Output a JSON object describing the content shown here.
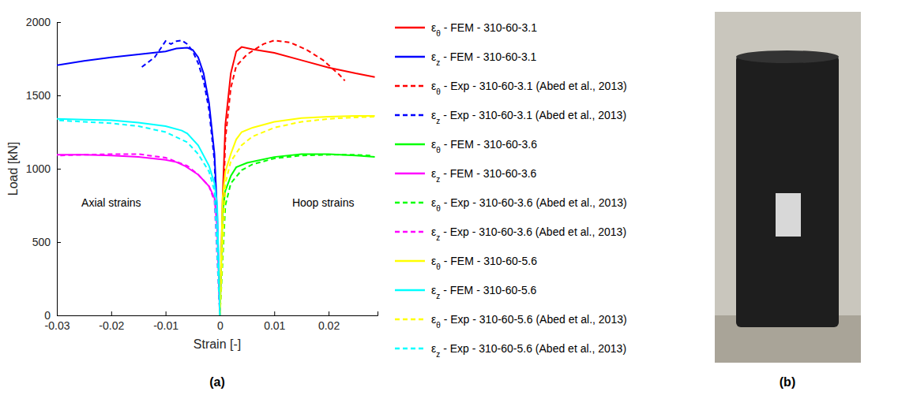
{
  "chart_data": {
    "type": "line",
    "x_label": "Strain [-]",
    "y_label": "Load [kN]",
    "xlim": [
      -0.03,
      0.029
    ],
    "ylim": [
      0,
      2000
    ],
    "xticks": [
      -0.03,
      -0.02,
      -0.01,
      0,
      0.01,
      0.02
    ],
    "yticks": [
      0,
      500,
      1000,
      1500,
      2000
    ],
    "grid": false,
    "legend": "right",
    "annotations": [
      {
        "text": "Axial strains",
        "x": -0.02,
        "y": 740
      },
      {
        "text": "Hoop strains",
        "x": 0.019,
        "y": 740
      }
    ],
    "series": [
      {
        "name": "εθ - FEM - 310-60-3.1",
        "color": "#ff0000",
        "line_style": "solid",
        "x": [
          0,
          0.0005,
          0.001,
          0.002,
          0.003,
          0.004,
          0.006,
          0.01,
          0.015,
          0.02,
          0.025,
          0.0285
        ],
        "values": [
          0,
          800,
          1300,
          1650,
          1800,
          1830,
          1815,
          1790,
          1740,
          1690,
          1650,
          1625
        ]
      },
      {
        "name": "εz - FEM - 310-60-3.1",
        "color": "#0000ff",
        "line_style": "solid",
        "x": [
          0,
          -0.0005,
          -0.001,
          -0.002,
          -0.003,
          -0.004,
          -0.005,
          -0.006,
          -0.008,
          -0.01,
          -0.015,
          -0.02,
          -0.025,
          -0.03
        ],
        "values": [
          0,
          700,
          1100,
          1450,
          1650,
          1760,
          1810,
          1825,
          1820,
          1800,
          1780,
          1760,
          1735,
          1705
        ]
      },
      {
        "name": "εθ - Exp - 310-60-3.1 (Abed et al., 2013)",
        "color": "#ff0000",
        "line_style": "dashed",
        "x": [
          0,
          0.001,
          0.002,
          0.003,
          0.005,
          0.008,
          0.01,
          0.013,
          0.016,
          0.019,
          0.022,
          0.023
        ],
        "values": [
          0,
          1200,
          1550,
          1700,
          1780,
          1850,
          1875,
          1860,
          1810,
          1740,
          1640,
          1600
        ]
      },
      {
        "name": "εz - Exp - 310-60-3.1 (Abed et al., 2013)",
        "color": "#0000ff",
        "line_style": "dashed",
        "x": [
          0,
          -0.001,
          -0.002,
          -0.003,
          -0.004,
          -0.005,
          -0.006,
          -0.007,
          -0.008,
          -0.009,
          -0.01,
          -0.012,
          -0.0145
        ],
        "values": [
          0,
          1050,
          1400,
          1600,
          1720,
          1800,
          1850,
          1875,
          1870,
          1850,
          1870,
          1760,
          1690
        ]
      },
      {
        "name": "εθ - FEM - 310-60-3.6",
        "color": "#00ff00",
        "line_style": "solid",
        "x": [
          0,
          0.0005,
          0.001,
          0.002,
          0.003,
          0.005,
          0.01,
          0.015,
          0.02,
          0.025,
          0.0285
        ],
        "values": [
          0,
          700,
          850,
          950,
          1010,
          1040,
          1080,
          1100,
          1100,
          1090,
          1080
        ]
      },
      {
        "name": "εz - FEM - 310-60-3.6",
        "color": "#ff00ff",
        "line_style": "solid",
        "x": [
          0,
          -0.0005,
          -0.001,
          -0.002,
          -0.004,
          -0.0065,
          -0.008,
          -0.01,
          -0.015,
          -0.02,
          -0.025,
          -0.03
        ],
        "values": [
          0,
          600,
          800,
          880,
          960,
          1020,
          1045,
          1060,
          1080,
          1090,
          1095,
          1095
        ]
      },
      {
        "name": "εθ - Exp - 310-60-3.6 (Abed et al., 2013)",
        "color": "#00ff00",
        "line_style": "dashed",
        "x": [
          0,
          0.001,
          0.002,
          0.004,
          0.006,
          0.01,
          0.015,
          0.02,
          0.025,
          0.028
        ],
        "values": [
          0,
          750,
          900,
          990,
          1030,
          1070,
          1090,
          1095,
          1095,
          1090
        ]
      },
      {
        "name": "εz - Exp - 310-60-3.6 (Abed et al., 2013)",
        "color": "#ff00ff",
        "line_style": "dashed",
        "x": [
          0,
          -0.001,
          -0.002,
          -0.004,
          -0.006,
          -0.01,
          -0.015,
          -0.02,
          -0.025,
          -0.03
        ],
        "values": [
          0,
          780,
          880,
          960,
          1020,
          1075,
          1100,
          1100,
          1095,
          1090
        ]
      },
      {
        "name": "εθ - FEM - 310-60-5.6",
        "color": "#ffff00",
        "line_style": "solid",
        "x": [
          0,
          0.0005,
          0.001,
          0.002,
          0.003,
          0.004,
          0.006,
          0.01,
          0.015,
          0.02,
          0.025,
          0.0285
        ],
        "values": [
          0,
          800,
          980,
          1100,
          1200,
          1250,
          1280,
          1320,
          1345,
          1355,
          1360,
          1360
        ]
      },
      {
        "name": "εz - FEM - 310-60-5.6",
        "color": "#00ffff",
        "line_style": "solid",
        "x": [
          0,
          -0.0005,
          -0.001,
          -0.002,
          -0.004,
          -0.006,
          -0.007,
          -0.01,
          -0.015,
          -0.02,
          -0.025,
          -0.03
        ],
        "values": [
          0,
          750,
          900,
          1020,
          1160,
          1240,
          1260,
          1290,
          1315,
          1330,
          1335,
          1340
        ]
      },
      {
        "name": "εθ - Exp - 310-60-5.6 (Abed et al., 2013)",
        "color": "#ffff00",
        "line_style": "dashed",
        "x": [
          0,
          0.001,
          0.002,
          0.004,
          0.006,
          0.01,
          0.015,
          0.02,
          0.025,
          0.0285
        ],
        "values": [
          0,
          900,
          1050,
          1160,
          1220,
          1280,
          1320,
          1340,
          1350,
          1355
        ]
      },
      {
        "name": "εz - Exp - 310-60-5.6 (Abed et al., 2013)",
        "color": "#00ffff",
        "line_style": "dashed",
        "x": [
          0,
          -0.001,
          -0.002,
          -0.004,
          -0.006,
          -0.01,
          -0.015,
          -0.02,
          -0.025,
          -0.03
        ],
        "values": [
          0,
          850,
          980,
          1100,
          1180,
          1250,
          1290,
          1310,
          1320,
          1330
        ]
      }
    ]
  },
  "panel_labels": [
    "(a)",
    "(b)"
  ]
}
